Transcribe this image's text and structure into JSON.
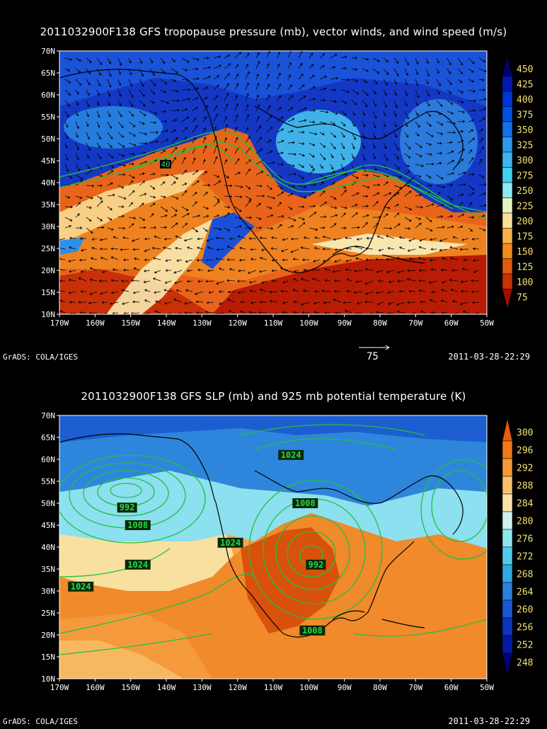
{
  "top_panel": {
    "title": "2011032900F138 GFS tropopause pressure (mb), vector winds, and wind speed (m/s)",
    "lat_labels": [
      "70N",
      "65N",
      "60N",
      "55N",
      "50N",
      "45N",
      "40N",
      "35N",
      "30N",
      "25N",
      "20N",
      "15N",
      "10N"
    ],
    "lon_labels": [
      "170W",
      "160W",
      "150W",
      "140W",
      "130W",
      "120W",
      "110W",
      "100W",
      "90W",
      "80W",
      "70W",
      "60W",
      "50W"
    ],
    "colorbar": [
      "450",
      "425",
      "400",
      "375",
      "350",
      "325",
      "300",
      "275",
      "250",
      "225",
      "200",
      "175",
      "150",
      "125",
      "100",
      "75"
    ],
    "colorbar_colors": [
      "#00006e",
      "#0018b4",
      "#0034d8",
      "#0050e6",
      "#1470e8",
      "#2c98ec",
      "#3cb4f0",
      "#44d0f0",
      "#8ceaf0",
      "#e8f4c0",
      "#f8e098",
      "#f8b24a",
      "#f08a18",
      "#e05a10",
      "#c83008",
      "#a01000"
    ],
    "contour_label": "40",
    "reference_vector_label": "75",
    "footer_left": "GrADS: COLA/IGES",
    "footer_right": "2011-03-28-22:29"
  },
  "bottom_panel": {
    "title": "2011032900F138 GFS SLP (mb) and 925 mb potential temperature (K)",
    "lat_labels": [
      "70N",
      "65N",
      "60N",
      "55N",
      "50N",
      "45N",
      "40N",
      "35N",
      "30N",
      "25N",
      "20N",
      "15N",
      "10N"
    ],
    "lon_labels": [
      "170W",
      "160W",
      "150W",
      "140W",
      "130W",
      "120W",
      "110W",
      "100W",
      "90W",
      "80W",
      "70W",
      "60W",
      "50W"
    ],
    "colorbar": [
      "300",
      "296",
      "292",
      "288",
      "284",
      "280",
      "276",
      "272",
      "268",
      "264",
      "260",
      "256",
      "252",
      "248"
    ],
    "colorbar_colors": [
      "#e85e0a",
      "#f07818",
      "#f49a34",
      "#f8c26a",
      "#f8e4a6",
      "#d0f0f0",
      "#8ce6f0",
      "#50cce8",
      "#30a8e0",
      "#2a80dc",
      "#1a58d0",
      "#0c34c0",
      "#0418a0",
      "#000070"
    ],
    "slp_labels": [
      {
        "text": "1024",
        "lon": -105,
        "lat": 61
      },
      {
        "text": "1008",
        "lon": -101,
        "lat": 50
      },
      {
        "text": "992",
        "lon": -151,
        "lat": 49
      },
      {
        "text": "1008",
        "lon": -148,
        "lat": 45
      },
      {
        "text": "1024",
        "lon": -122,
        "lat": 41
      },
      {
        "text": "992",
        "lon": -98,
        "lat": 36
      },
      {
        "text": "1024",
        "lon": -148,
        "lat": 36
      },
      {
        "text": "1024",
        "lon": -164,
        "lat": 31
      },
      {
        "text": "1008",
        "lon": -99,
        "lat": 21
      }
    ],
    "footer_left": "GrADS: COLA/IGES",
    "footer_right": "2011-03-28-22:29"
  }
}
